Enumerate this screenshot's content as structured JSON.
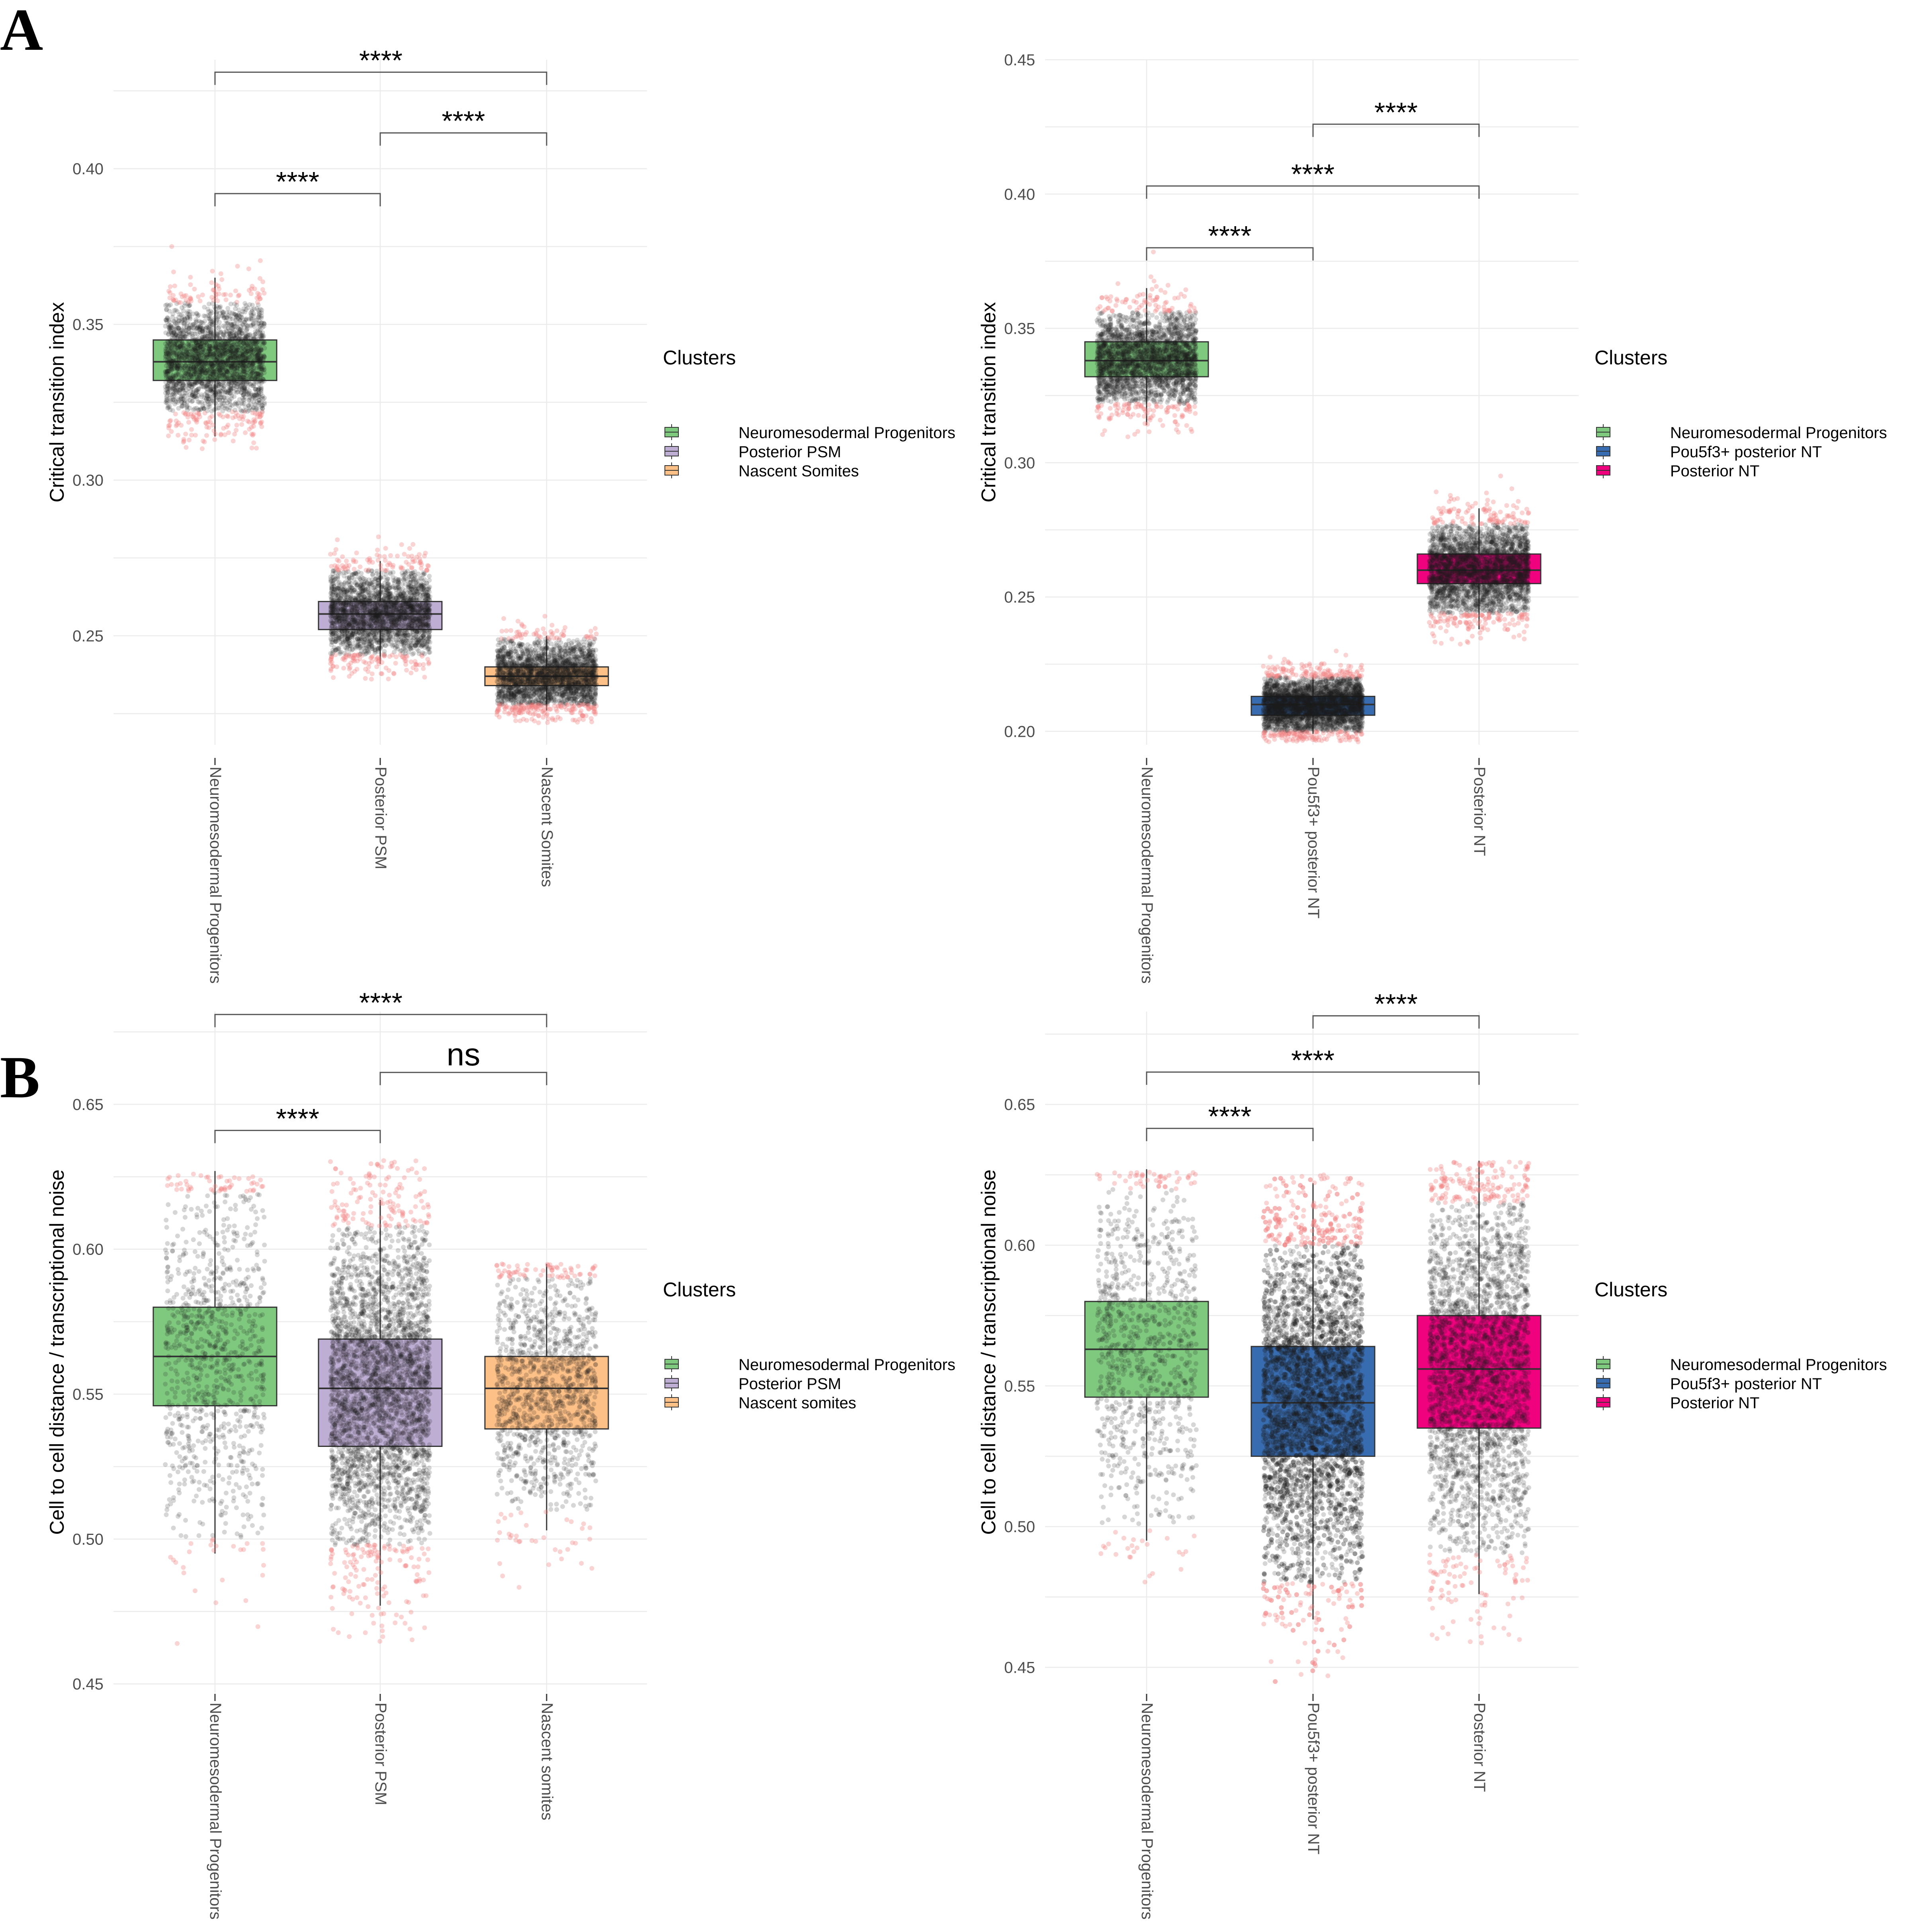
{
  "panel_labels": [
    "A",
    "B"
  ],
  "palette": {
    "nmp": "#7fc97f",
    "psm": "#beaed4",
    "somites": "#fdc086",
    "pou5f3": "#386cb0",
    "posterior_nt": "#f0027f",
    "points": "#1a1a1a",
    "outliers": "#f08080",
    "grid": "#ebebeb",
    "text": "#4d4d4d"
  },
  "chart_data": [
    {
      "type": "box",
      "panel": "A",
      "ylabel": "Critical transition index",
      "ylim": [
        0.215,
        0.435
      ],
      "yticks": [
        0.25,
        0.3,
        0.35,
        0.4
      ],
      "yticklabels": [
        "0.25",
        "0.30",
        "0.35",
        "0.40"
      ],
      "grid": true,
      "legend": {
        "title": "Clusters",
        "position": "right",
        "entries": [
          "Neuromesodermal Progenitors",
          "Posterior PSM",
          "Nascent Somites"
        ]
      },
      "categories": [
        "Neuromesodermal Progenitors",
        "Posterior PSM",
        "Nascent Somites"
      ],
      "colors": [
        "#7fc97f",
        "#beaed4",
        "#fdc086"
      ],
      "boxes": [
        {
          "q1": 0.332,
          "median": 0.338,
          "q3": 0.345,
          "whisker_low": 0.314,
          "whisker_high": 0.365,
          "point_min": 0.309,
          "point_max": 0.383,
          "n_points": 2500,
          "core_low": 0.322,
          "core_high": 0.357
        },
        {
          "q1": 0.252,
          "median": 0.257,
          "q3": 0.261,
          "whisker_low": 0.241,
          "whisker_high": 0.274,
          "point_min": 0.236,
          "point_max": 0.285,
          "n_points": 2500,
          "core_low": 0.244,
          "core_high": 0.271
        },
        {
          "q1": 0.234,
          "median": 0.237,
          "q3": 0.24,
          "whisker_low": 0.226,
          "whisker_high": 0.25,
          "point_min": 0.222,
          "point_max": 0.259,
          "n_points": 2500,
          "core_low": 0.228,
          "core_high": 0.249
        }
      ],
      "comparisons": [
        {
          "from": 0,
          "to": 1,
          "label": "****",
          "y": 0.392
        },
        {
          "from": 1,
          "to": 2,
          "label": "****",
          "y": 0.4115
        },
        {
          "from": 0,
          "to": 2,
          "label": "****",
          "y": 0.431
        }
      ]
    },
    {
      "type": "box",
      "panel": "A",
      "ylabel": "Critical transition index",
      "ylim": [
        0.195,
        0.45
      ],
      "yticks": [
        0.2,
        0.25,
        0.3,
        0.35,
        0.4,
        0.45
      ],
      "yticklabels": [
        "0.20",
        "0.25",
        "0.30",
        "0.35",
        "0.40",
        "0.45"
      ],
      "grid": true,
      "legend": {
        "title": "Clusters",
        "position": "right",
        "entries": [
          "Neuromesodermal Progenitors",
          "Pou5f3+ posterior NT",
          "Posterior NT"
        ]
      },
      "categories": [
        "Neuromesodermal Progenitors",
        "Pou5f3+ posterior NT",
        "Posterior NT"
      ],
      "colors": [
        "#7fc97f",
        "#386cb0",
        "#f0027f"
      ],
      "boxes": [
        {
          "q1": 0.332,
          "median": 0.338,
          "q3": 0.345,
          "whisker_low": 0.314,
          "whisker_high": 0.365,
          "point_min": 0.309,
          "point_max": 0.383,
          "n_points": 2500,
          "core_low": 0.322,
          "core_high": 0.356
        },
        {
          "q1": 0.206,
          "median": 0.21,
          "q3": 0.213,
          "whisker_low": 0.199,
          "whisker_high": 0.221,
          "point_min": 0.196,
          "point_max": 0.232,
          "n_points": 3200,
          "core_low": 0.2,
          "core_high": 0.22
        },
        {
          "q1": 0.255,
          "median": 0.26,
          "q3": 0.266,
          "whisker_low": 0.238,
          "whisker_high": 0.283,
          "point_min": 0.232,
          "point_max": 0.298,
          "n_points": 3000,
          "core_low": 0.244,
          "core_high": 0.277
        }
      ],
      "comparisons": [
        {
          "from": 0,
          "to": 1,
          "label": "****",
          "y": 0.38
        },
        {
          "from": 0,
          "to": 2,
          "label": "****",
          "y": 0.403
        },
        {
          "from": 1,
          "to": 2,
          "label": "****",
          "y": 0.426
        }
      ]
    },
    {
      "type": "box",
      "panel": "B",
      "ylabel": "Cell to cell distance / transcriptional noise",
      "ylim": [
        0.447,
        0.682
      ],
      "yticks": [
        0.45,
        0.5,
        0.55,
        0.6,
        0.65
      ],
      "yticklabels": [
        "0.45",
        "0.50",
        "0.55",
        "0.60",
        "0.65"
      ],
      "grid": true,
      "legend": {
        "title": "Clusters",
        "position": "right",
        "entries": [
          "Neuromesodermal Progenitors",
          "Posterior PSM",
          "Nascent somites"
        ]
      },
      "categories": [
        "Neuromesodermal Progenitors",
        "Posterior PSM",
        "Nascent somites"
      ],
      "colors": [
        "#7fc97f",
        "#beaed4",
        "#fdc086"
      ],
      "boxes": [
        {
          "q1": 0.546,
          "median": 0.563,
          "q3": 0.58,
          "whisker_low": 0.495,
          "whisker_high": 0.627,
          "point_min": 0.458,
          "point_max": 0.626,
          "n_points": 1000,
          "core_low": 0.5,
          "core_high": 0.62
        },
        {
          "q1": 0.532,
          "median": 0.552,
          "q3": 0.569,
          "whisker_low": 0.477,
          "whisker_high": 0.617,
          "point_min": 0.462,
          "point_max": 0.631,
          "n_points": 3500,
          "core_low": 0.498,
          "core_high": 0.608
        },
        {
          "q1": 0.538,
          "median": 0.552,
          "q3": 0.563,
          "whisker_low": 0.503,
          "whisker_high": 0.595,
          "point_min": 0.47,
          "point_max": 0.595,
          "n_points": 1300,
          "core_low": 0.51,
          "core_high": 0.59
        }
      ],
      "comparisons": [
        {
          "from": 0,
          "to": 1,
          "label": "****",
          "y": 0.641
        },
        {
          "from": 1,
          "to": 2,
          "label": "ns",
          "y": 0.661
        },
        {
          "from": 0,
          "to": 2,
          "label": "****",
          "y": 0.681
        }
      ]
    },
    {
      "type": "box",
      "panel": "B",
      "ylabel": "Cell to cell distance / transcriptional noise",
      "ylim": [
        0.441,
        0.683
      ],
      "yticks": [
        0.45,
        0.5,
        0.55,
        0.6,
        0.65
      ],
      "yticklabels": [
        "0.45",
        "0.50",
        "0.55",
        "0.60",
        "0.65"
      ],
      "grid": true,
      "legend": {
        "title": "Clusters",
        "position": "right",
        "entries": [
          "Neuromesodermal Progenitors",
          "Pou5f3+ posterior NT",
          "Posterior NT"
        ]
      },
      "categories": [
        "Neuromesodermal Progenitors",
        "Pou5f3+ posterior NT",
        "Posterior NT"
      ],
      "colors": [
        "#7fc97f",
        "#386cb0",
        "#f0027f"
      ],
      "boxes": [
        {
          "q1": 0.546,
          "median": 0.563,
          "q3": 0.58,
          "whisker_low": 0.495,
          "whisker_high": 0.627,
          "point_min": 0.458,
          "point_max": 0.626,
          "n_points": 1000,
          "core_low": 0.5,
          "core_high": 0.62
        },
        {
          "q1": 0.525,
          "median": 0.544,
          "q3": 0.564,
          "whisker_low": 0.467,
          "whisker_high": 0.622,
          "point_min": 0.443,
          "point_max": 0.625,
          "n_points": 5000,
          "core_low": 0.48,
          "core_high": 0.6
        },
        {
          "q1": 0.535,
          "median": 0.556,
          "q3": 0.575,
          "whisker_low": 0.476,
          "whisker_high": 0.63,
          "point_min": 0.458,
          "point_max": 0.63,
          "n_points": 3000,
          "core_low": 0.49,
          "core_high": 0.615
        }
      ],
      "comparisons": [
        {
          "from": 0,
          "to": 1,
          "label": "****",
          "y": 0.6415
        },
        {
          "from": 0,
          "to": 2,
          "label": "****",
          "y": 0.6615
        },
        {
          "from": 1,
          "to": 2,
          "label": "****",
          "y": 0.6815
        }
      ]
    }
  ]
}
